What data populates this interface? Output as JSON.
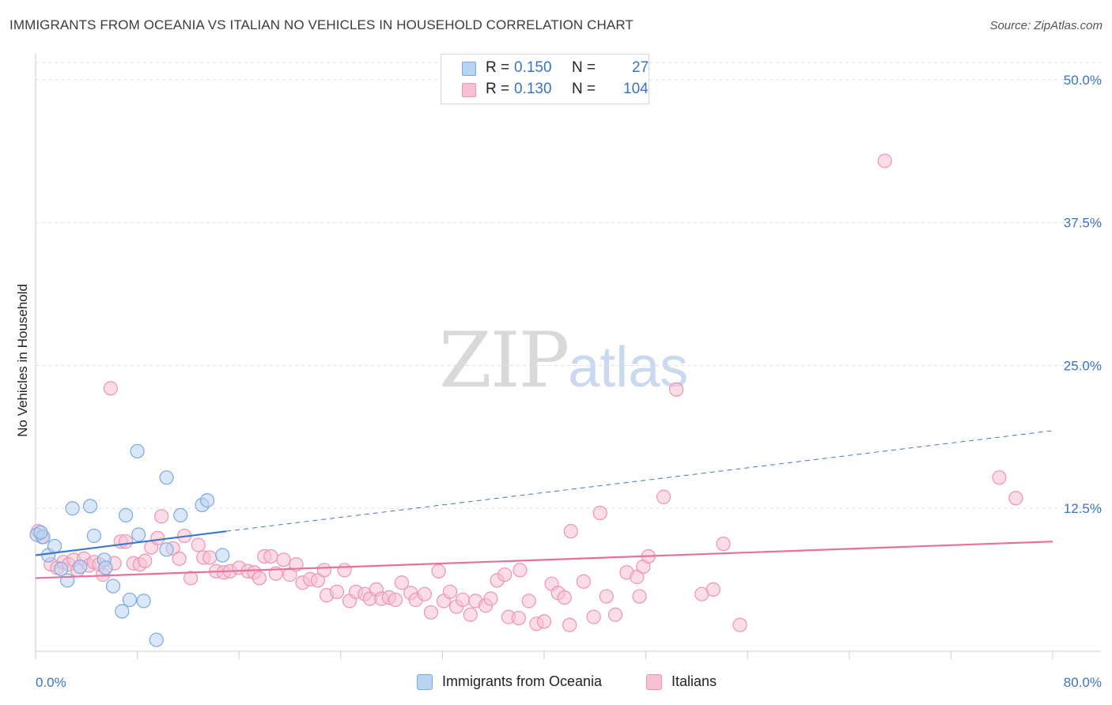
{
  "title": "IMMIGRANTS FROM OCEANIA VS ITALIAN NO VEHICLES IN HOUSEHOLD CORRELATION CHART",
  "source": "Source: ZipAtlas.com",
  "watermark": {
    "zip": "ZIP",
    "atlas": "atlas"
  },
  "legend": {
    "rows": [
      {
        "r_label": "R =",
        "r_value": "0.150",
        "n_label": "N =",
        "n_value": "27"
      },
      {
        "r_label": "R =",
        "r_value": "0.130",
        "n_label": "N =",
        "n_value": "104"
      }
    ]
  },
  "bottom_legend": [
    {
      "label": "Immigrants from Oceania"
    },
    {
      "label": "Italians"
    }
  ],
  "colors": {
    "blue_fill": "#b9d3f2",
    "blue_stroke": "#7aaae3",
    "blue_line": "#3a77d1",
    "pink_fill": "#f7c1d2",
    "pink_stroke": "#ee93b1",
    "pink_line": "#e8709b",
    "tick_label": "#3b73c5",
    "grid": "#dddddd"
  },
  "chart_data": {
    "type": "scatter",
    "title": "IMMIGRANTS FROM OCEANIA VS ITALIAN NO VEHICLES IN HOUSEHOLD CORRELATION CHART",
    "ylabel": "No Vehicles in Household",
    "xlabel": "",
    "xlim": [
      0,
      80
    ],
    "ylim": [
      0,
      52
    ],
    "x_tick_labels": [
      "0.0%",
      "80.0%"
    ],
    "y_ticks": [
      12.5,
      25.0,
      37.5,
      50.0
    ],
    "y_tick_labels": [
      "12.5%",
      "25.0%",
      "37.5%",
      "50.0%"
    ],
    "grid": "horizontal dashed",
    "series": [
      {
        "name": "Immigrants from Oceania",
        "R": 0.15,
        "N": 27,
        "trend": {
          "x": [
            0,
            15
          ],
          "y": [
            8.4,
            10.5
          ],
          "dashed_to_x": 80,
          "dashed_end_y": 19.3
        },
        "points": [
          [
            0.1,
            10.2
          ],
          [
            0.6,
            10.0
          ],
          [
            1.0,
            8.4
          ],
          [
            1.5,
            9.2
          ],
          [
            2.0,
            7.2
          ],
          [
            2.5,
            6.2
          ],
          [
            2.9,
            12.5
          ],
          [
            3.5,
            7.4
          ],
          [
            4.3,
            12.7
          ],
          [
            4.6,
            10.1
          ],
          [
            5.4,
            8.0
          ],
          [
            5.5,
            7.3
          ],
          [
            6.1,
            5.7
          ],
          [
            6.8,
            3.5
          ],
          [
            7.1,
            11.9
          ],
          [
            7.4,
            4.5
          ],
          [
            8.0,
            17.5
          ],
          [
            8.1,
            10.2
          ],
          [
            8.5,
            4.4
          ],
          [
            9.5,
            1.0
          ],
          [
            10.3,
            8.9
          ],
          [
            10.3,
            15.2
          ],
          [
            11.4,
            11.9
          ],
          [
            13.1,
            12.8
          ],
          [
            13.5,
            13.2
          ],
          [
            14.7,
            8.4
          ],
          [
            0.4,
            10.4
          ]
        ]
      },
      {
        "name": "Italians",
        "R": 0.13,
        "N": 104,
        "trend": {
          "x": [
            0,
            80
          ],
          "y": [
            6.4,
            9.6
          ]
        },
        "points": [
          [
            0.2,
            10.5
          ],
          [
            0.5,
            10.0
          ],
          [
            1.2,
            7.6
          ],
          [
            1.7,
            7.3
          ],
          [
            2.2,
            7.8
          ],
          [
            2.6,
            7.6
          ],
          [
            3.0,
            8.0
          ],
          [
            3.3,
            7.1
          ],
          [
            3.8,
            8.1
          ],
          [
            4.2,
            7.5
          ],
          [
            4.6,
            7.8
          ],
          [
            5.0,
            7.6
          ],
          [
            5.3,
            6.7
          ],
          [
            5.9,
            23.0
          ],
          [
            6.2,
            7.7
          ],
          [
            6.7,
            9.6
          ],
          [
            7.1,
            9.6
          ],
          [
            7.7,
            7.7
          ],
          [
            8.2,
            7.6
          ],
          [
            8.6,
            7.9
          ],
          [
            9.1,
            9.1
          ],
          [
            9.6,
            9.9
          ],
          [
            9.9,
            11.8
          ],
          [
            10.8,
            9.0
          ],
          [
            11.3,
            8.1
          ],
          [
            11.7,
            10.1
          ],
          [
            12.2,
            6.4
          ],
          [
            12.8,
            9.3
          ],
          [
            13.2,
            8.2
          ],
          [
            13.7,
            8.2
          ],
          [
            14.2,
            7.0
          ],
          [
            14.8,
            6.9
          ],
          [
            15.3,
            7.0
          ],
          [
            16.0,
            7.3
          ],
          [
            16.7,
            7.0
          ],
          [
            17.2,
            6.9
          ],
          [
            17.6,
            6.4
          ],
          [
            18.0,
            8.3
          ],
          [
            18.5,
            8.3
          ],
          [
            18.9,
            6.8
          ],
          [
            19.5,
            8.0
          ],
          [
            20.0,
            6.7
          ],
          [
            20.5,
            7.6
          ],
          [
            21.0,
            6.0
          ],
          [
            21.6,
            6.3
          ],
          [
            22.2,
            6.2
          ],
          [
            22.7,
            7.1
          ],
          [
            22.9,
            4.9
          ],
          [
            23.7,
            5.2
          ],
          [
            24.3,
            7.1
          ],
          [
            24.7,
            4.4
          ],
          [
            25.2,
            5.2
          ],
          [
            25.9,
            5.0
          ],
          [
            26.3,
            4.6
          ],
          [
            26.8,
            5.4
          ],
          [
            27.2,
            4.6
          ],
          [
            27.8,
            4.7
          ],
          [
            28.3,
            4.5
          ],
          [
            28.8,
            6.0
          ],
          [
            29.5,
            5.1
          ],
          [
            29.9,
            4.5
          ],
          [
            30.6,
            5.0
          ],
          [
            31.1,
            3.4
          ],
          [
            31.7,
            7.0
          ],
          [
            32.1,
            4.4
          ],
          [
            32.6,
            5.2
          ],
          [
            33.1,
            3.9
          ],
          [
            33.6,
            4.5
          ],
          [
            34.2,
            3.2
          ],
          [
            34.6,
            4.4
          ],
          [
            35.4,
            4.0
          ],
          [
            35.8,
            4.6
          ],
          [
            36.3,
            6.2
          ],
          [
            36.9,
            6.7
          ],
          [
            37.2,
            3.0
          ],
          [
            38.0,
            2.9
          ],
          [
            38.1,
            7.1
          ],
          [
            38.8,
            4.4
          ],
          [
            39.4,
            2.4
          ],
          [
            40.0,
            2.6
          ],
          [
            40.6,
            5.9
          ],
          [
            41.1,
            5.1
          ],
          [
            41.6,
            4.7
          ],
          [
            42.0,
            2.3
          ],
          [
            42.1,
            10.5
          ],
          [
            43.1,
            6.1
          ],
          [
            43.9,
            3.0
          ],
          [
            44.4,
            12.1
          ],
          [
            44.9,
            4.8
          ],
          [
            45.6,
            3.2
          ],
          [
            46.5,
            6.9
          ],
          [
            47.3,
            6.5
          ],
          [
            47.5,
            4.8
          ],
          [
            47.8,
            7.4
          ],
          [
            48.2,
            8.3
          ],
          [
            49.4,
            13.5
          ],
          [
            50.4,
            22.9
          ],
          [
            52.4,
            5.0
          ],
          [
            53.3,
            5.4
          ],
          [
            54.1,
            9.4
          ],
          [
            55.4,
            2.3
          ],
          [
            66.8,
            42.9
          ],
          [
            75.8,
            15.2
          ],
          [
            77.1,
            13.4
          ]
        ]
      }
    ]
  }
}
